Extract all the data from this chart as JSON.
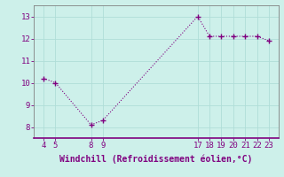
{
  "x": [
    4,
    5,
    8,
    9,
    17,
    18,
    19,
    20,
    21,
    22,
    23
  ],
  "y": [
    10.2,
    10.0,
    8.1,
    8.3,
    13.0,
    12.1,
    12.1,
    12.1,
    12.1,
    12.1,
    11.9
  ],
  "xticks": [
    4,
    5,
    8,
    9,
    17,
    18,
    19,
    20,
    21,
    22,
    23
  ],
  "yticks": [
    8,
    9,
    10,
    11,
    12,
    13
  ],
  "ylim": [
    7.5,
    13.5
  ],
  "xlim": [
    3.2,
    23.8
  ],
  "xlabel": "Windchill (Refroidissement éolien,°C)",
  "line_color": "#800080",
  "marker": "+",
  "bg_color": "#cdf0ea",
  "grid_color": "#b0ddd8",
  "label_color": "#800080",
  "tick_color": "#800080",
  "spine_color": "#808080",
  "fontsize_label": 7,
  "fontsize_tick": 6.5
}
